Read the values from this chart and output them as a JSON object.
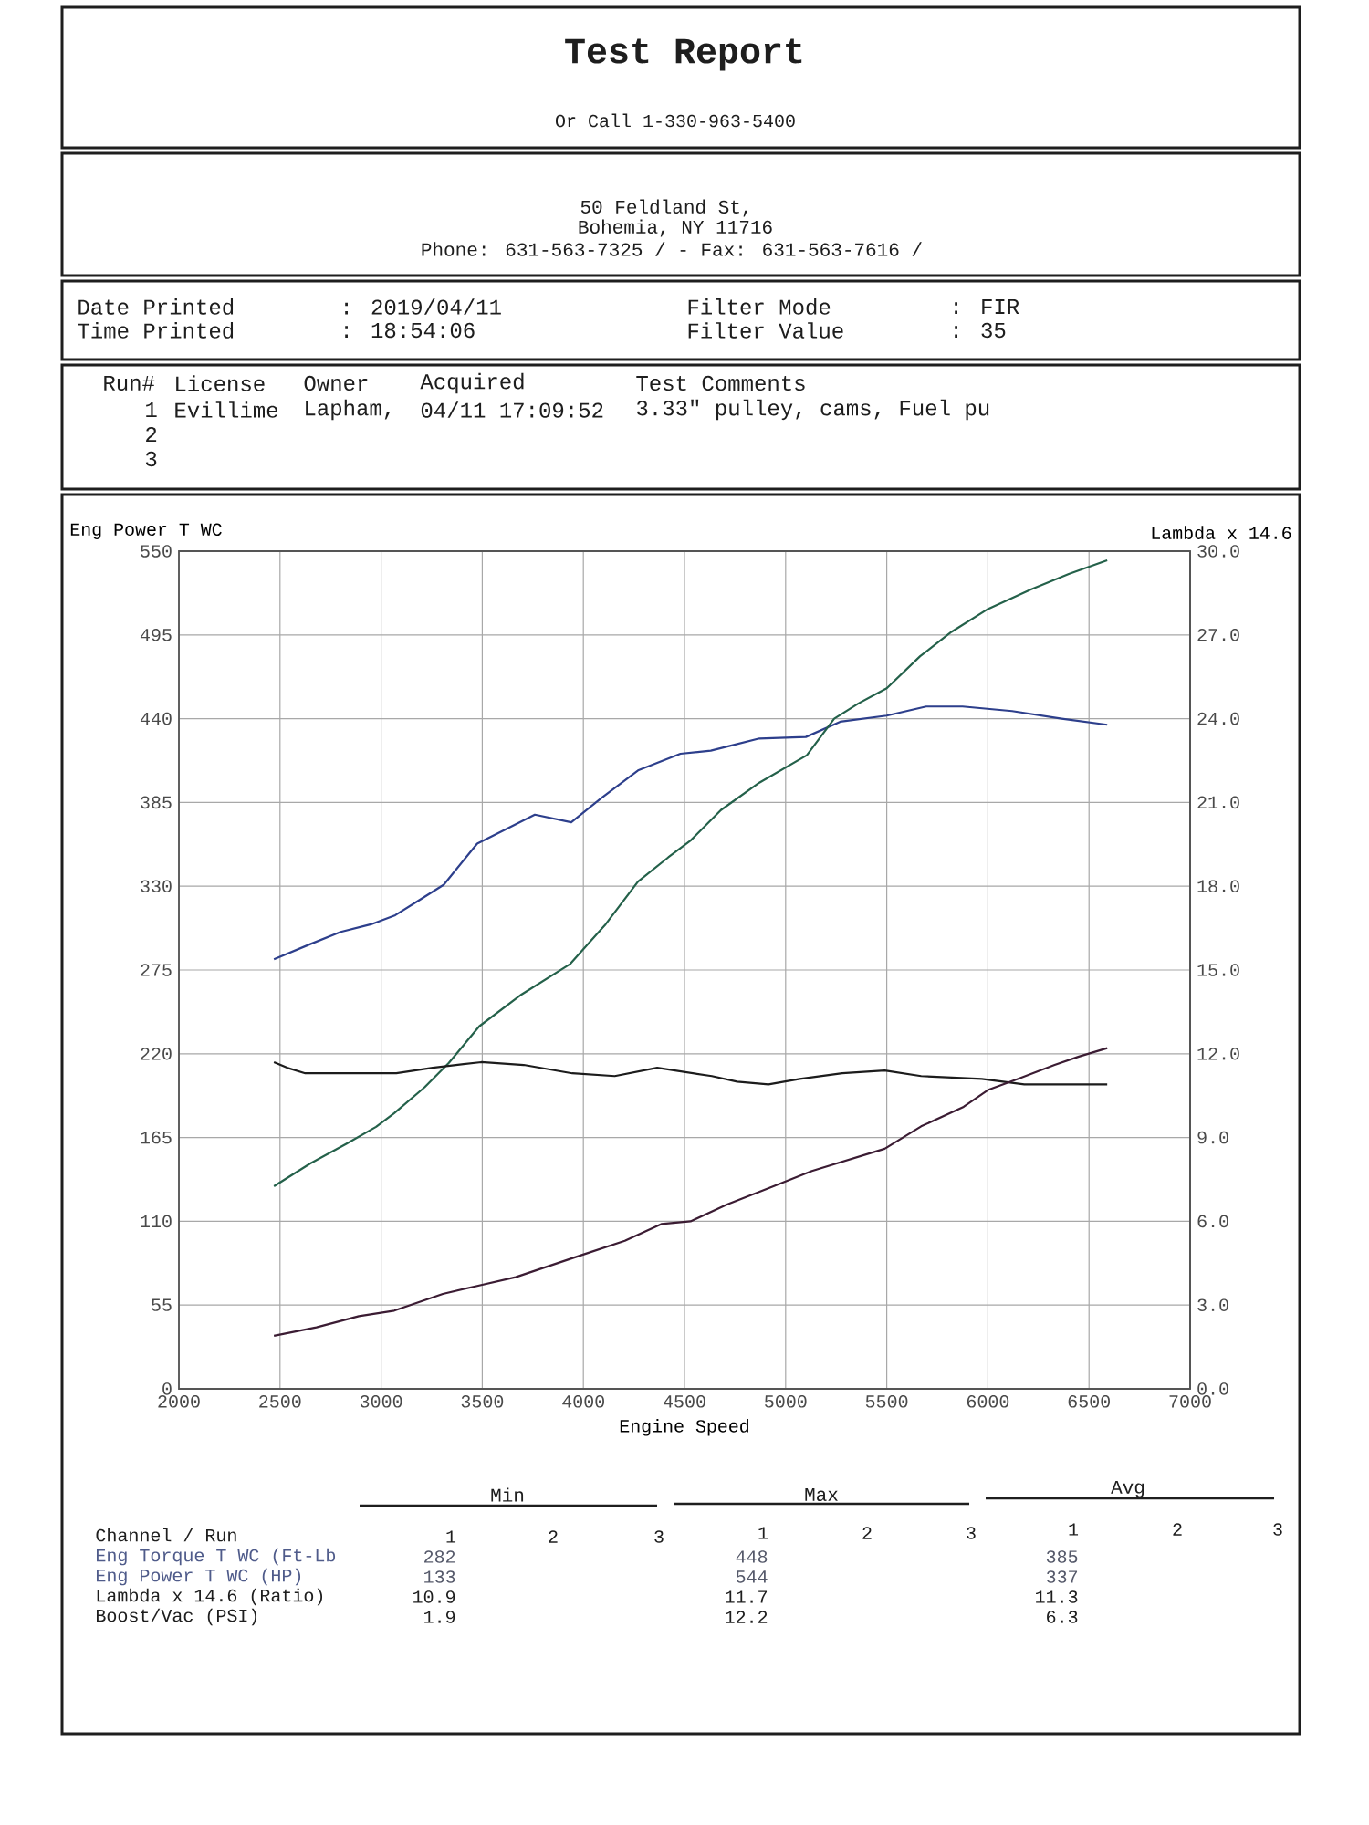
{
  "chart_data": {
    "type": "line",
    "title": "Test Report",
    "xlabel": "Engine Speed",
    "ylabel": "Eng Power T WC",
    "y2label": "Lambda x 14.6",
    "xlim": [
      2000,
      7000
    ],
    "xticks": [
      2000,
      2500,
      3000,
      3500,
      4000,
      4500,
      5000,
      5500,
      6000,
      6500,
      7000
    ],
    "ylim": [
      0,
      550
    ],
    "yticks": [
      0,
      55,
      110,
      165,
      220,
      275,
      330,
      385,
      440,
      495,
      550
    ],
    "y2lim": [
      0,
      30
    ],
    "y2ticks": [
      {
        "value": 0,
        "label": "0.0"
      },
      {
        "value": 3,
        "label": "3.0"
      },
      {
        "value": 6,
        "label": "6.0"
      },
      {
        "value": 9,
        "label": "9.0"
      },
      {
        "value": 12,
        "label": "12.0"
      },
      {
        "value": 15,
        "label": "15.0"
      },
      {
        "value": 18,
        "label": "18.0"
      },
      {
        "value": 21,
        "label": "21.0"
      },
      {
        "value": 24,
        "label": "24.0"
      },
      {
        "value": 27,
        "label": "27.0"
      },
      {
        "value": 30,
        "label": "30.0"
      }
    ],
    "grid": true,
    "series": [
      {
        "color": "#2d3f8c",
        "x": [
          2470,
          2650,
          2800,
          2950,
          3070,
          3190,
          3310,
          3475,
          3610,
          3760,
          3940,
          4090,
          4270,
          4480,
          4630,
          4720,
          4870,
          5100,
          5270,
          5500,
          5695,
          5875,
          6120,
          6365,
          6590
        ],
        "values": [
          282,
          292,
          300,
          305,
          311,
          321,
          331,
          358,
          367,
          377,
          372,
          388,
          406,
          417,
          419,
          422,
          427,
          428,
          438,
          442,
          448,
          448,
          445,
          440,
          436
        ]
      },
      {
        "color": "#24614a",
        "x": [
          2470,
          2650,
          2830,
          2975,
          3065,
          3215,
          3335,
          3485,
          3695,
          3935,
          4110,
          4270,
          4420,
          4530,
          4680,
          4870,
          5105,
          5240,
          5360,
          5500,
          5665,
          5820,
          6000,
          6215,
          6400,
          6590
        ],
        "values": [
          133,
          148,
          161,
          172,
          181,
          198,
          214,
          238,
          259,
          279,
          305,
          333,
          349,
          360,
          380,
          398,
          416,
          440,
          450,
          460,
          481,
          497,
          512,
          525,
          535,
          544
        ]
      },
      {
        "color": "#1c1c1c",
        "axis": "y2",
        "x": [
          2470,
          2535,
          2625,
          2775,
          3075,
          3255,
          3495,
          3705,
          3945,
          4155,
          4365,
          4635,
          4760,
          4915,
          5070,
          5280,
          5490,
          5670,
          5970,
          6180,
          6590
        ],
        "values": [
          11.7,
          11.5,
          11.3,
          11.3,
          11.3,
          11.5,
          11.7,
          11.6,
          11.3,
          11.2,
          11.5,
          11.2,
          11.0,
          10.9,
          11.1,
          11.3,
          11.4,
          11.2,
          11.1,
          10.9,
          10.9
        ]
      },
      {
        "color": "#3b1c33",
        "axis": "y2",
        "x": [
          2470,
          2680,
          2890,
          3065,
          3305,
          3485,
          3665,
          3995,
          4205,
          4385,
          4530,
          4710,
          4920,
          5130,
          5310,
          5490,
          5670,
          5880,
          6000,
          6150,
          6330,
          6450,
          6590
        ],
        "values": [
          1.9,
          2.2,
          2.6,
          2.8,
          3.4,
          3.7,
          4.0,
          4.8,
          5.3,
          5.9,
          6.0,
          6.6,
          7.2,
          7.8,
          8.2,
          8.6,
          9.4,
          10.1,
          10.7,
          11.1,
          11.6,
          11.9,
          12.2
        ]
      }
    ],
    "annotations": [
      "Or Call 1-330-963-5400",
      "50 Feldland St,",
      "Bohemia, NY 11716",
      "Phone: 631-563-7325 / - Fax: 631-563-7616 /",
      "Date Printed",
      ": 2019/04/11",
      "Time Printed",
      ": 18:54:06",
      "Filter Mode",
      ": FIR",
      "Filter Value",
      ": 35",
      "Run#",
      "License",
      "Owner",
      "Acquired",
      "Test Comments",
      "1",
      "Evillime",
      "Lapham,",
      "04/11 17:09:52",
      "3.33\" pulley, cams, Fuel pu",
      "2",
      "3",
      "Min",
      "Max",
      "Avg",
      "Channel / Run",
      "1",
      "2",
      "3",
      "1",
      "2",
      "3",
      "1",
      "2",
      "3",
      "Eng Torque T WC (Ft-Lb",
      "282",
      "448",
      "385",
      "Eng Power T WC (HP)",
      "133",
      "544",
      "337",
      "Lambda x 14.6 (Ratio)",
      "10.9",
      "11.7",
      "11.3",
      "Boost/Vac (PSI)",
      "1.9",
      "12.2",
      "6.3"
    ]
  }
}
